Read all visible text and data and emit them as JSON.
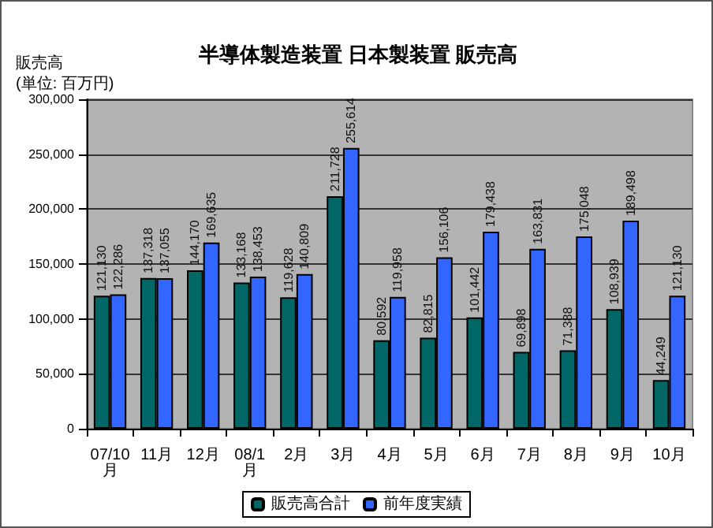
{
  "chart_data": {
    "type": "bar",
    "title": "半導体製造装置 日本製装置 販売高",
    "ylabel": "販売高\n(単位: 百万円)",
    "categories": [
      "07/10月",
      "11月",
      "12月",
      "08/1月",
      "2月",
      "3月",
      "4月",
      "5月",
      "6月",
      "7月",
      "8月",
      "9月",
      "10月"
    ],
    "series": [
      {
        "name": "販売高合計",
        "color": "#006666",
        "values": [
          121130,
          137318,
          144170,
          133168,
          119628,
          211728,
          80592,
          82815,
          101442,
          69898,
          71388,
          108939,
          44249
        ],
        "value_labels": [
          "121,130",
          "137,318",
          "144,170",
          "133,168",
          "119,628",
          "211,728",
          "80,592",
          "82,815",
          "101,442",
          "69,898",
          "71,388",
          "108,939",
          "44,249"
        ]
      },
      {
        "name": "前年度実績",
        "color": "#3366ff",
        "values": [
          122286,
          137055,
          169635,
          138453,
          140809,
          255614,
          119958,
          156106,
          179438,
          163831,
          175048,
          189498,
          121130
        ],
        "value_labels": [
          "122,286",
          "137,055",
          "169,635",
          "138,453",
          "140,809",
          "255,614",
          "119,958",
          "156,106",
          "179,438",
          "163,831",
          "175,048",
          "189,498",
          "121,130"
        ]
      }
    ],
    "ylim": [
      0,
      300000
    ],
    "yticks": [
      0,
      {
        "value": 50000,
        "label": "50,000"
      },
      {
        "value": 100000,
        "label": "100,000"
      },
      {
        "value": 150000,
        "label": "150,000"
      },
      {
        "value": 200000,
        "label": "200,000"
      },
      {
        "value": 250000,
        "label": "250,000"
      },
      {
        "value": 300000,
        "label": "300,000"
      }
    ],
    "grid": "y",
    "legend": "bottom"
  }
}
